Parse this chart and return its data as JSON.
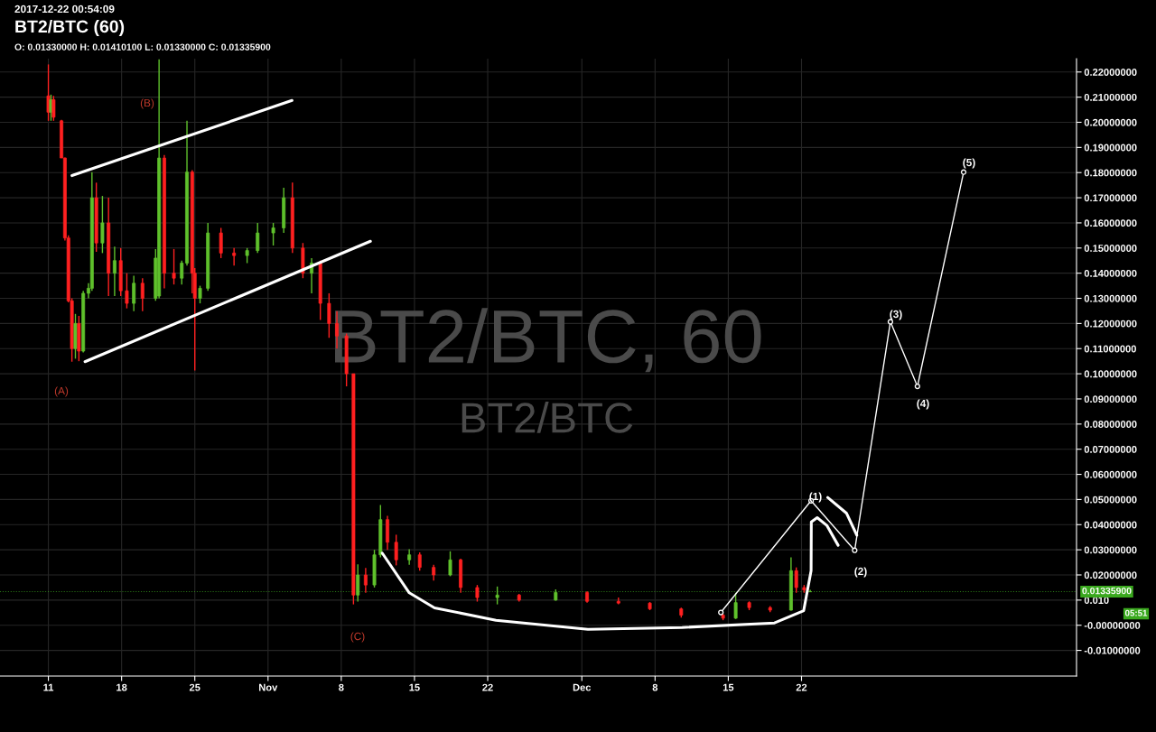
{
  "chart_data": {
    "type": "candlestick",
    "title": "BT2/BTC (60)",
    "subtitle": "O: 0.01330000 H: 0.01410100 L: 0.01330000 C: 0.01335900",
    "x": [
      "2017-10-11T00:00",
      "2017-10-11T06:00",
      "2017-10-11T12:00",
      "2017-10-12T06:00",
      "2017-10-12T14:00",
      "2017-10-12T22:00",
      "2017-10-13T06:00",
      "2017-10-13T14:00",
      "2017-10-13T22:00",
      "2017-10-14T08:00",
      "2017-10-14T20:00",
      "2017-10-15T04:00",
      "2017-10-15T14:00",
      "2017-10-16T04:00",
      "2017-10-16T18:00",
      "2017-10-17T08:00",
      "2017-10-17T22:00",
      "2017-10-18T12:00",
      "2017-10-19T04:00",
      "2017-10-20T00:00",
      "2017-10-21T06:00",
      "2017-10-21T14:00",
      "2017-10-22T02:00",
      "2017-10-23T00:00",
      "2017-10-23T18:00",
      "2017-10-24T06:00",
      "2017-10-24T18:00",
      "2017-10-25T00:00",
      "2017-10-25T12:00",
      "2017-10-26T06:00",
      "2017-10-27T12:00",
      "2017-10-28T18:00",
      "2017-10-30T00:00",
      "2017-10-31T00:00",
      "2017-11-01T12:00",
      "2017-11-02T12:00",
      "2017-11-03T08:00",
      "2017-11-04T08:00",
      "2017-11-05T04:00",
      "2017-11-06T00:00",
      "2017-11-06T20:00",
      "2017-11-07T14:00",
      "2017-11-08T12:00",
      "2017-11-09T04:00",
      "2017-11-09T14:00",
      "2017-11-10T08:00",
      "2017-11-11T04:00",
      "2017-11-11T18:00",
      "2017-11-12T10:00",
      "2017-11-13T06:00",
      "2017-11-14T12:00",
      "2017-11-15T12:00",
      "2017-11-16T20:00",
      "2017-11-18T10:00",
      "2017-11-19T10:00",
      "2017-11-21T00:00",
      "2017-11-22T22:00",
      "2017-11-25T00:00",
      "2017-11-28T12:00",
      "2017-12-01T12:00",
      "2017-12-04T12:00",
      "2017-12-07T12:00",
      "2017-12-10T12:00",
      "2017-12-14T12:00",
      "2017-12-15T17:00",
      "2017-12-17T00:00",
      "2017-12-19T00:00",
      "2017-12-21T00:00",
      "2017-12-21T12:00",
      "2017-12-22T06:00",
      "2017-12-22T20:00"
    ],
    "ohlc": [
      [
        0.2105,
        0.223,
        0.2006,
        0.204
      ],
      [
        0.204,
        0.211,
        0.2006,
        0.209
      ],
      [
        0.209,
        0.2105,
        0.2006,
        0.202
      ],
      [
        0.2006,
        0.201,
        0.1858,
        0.1858
      ],
      [
        0.1858,
        0.186,
        0.153,
        0.154
      ],
      [
        0.154,
        0.155,
        0.1284,
        0.129
      ],
      [
        0.129,
        0.13,
        0.1048,
        0.11
      ],
      [
        0.11,
        0.1238,
        0.106,
        0.12
      ],
      [
        0.12,
        0.123,
        0.105,
        0.109
      ],
      [
        0.109,
        0.133,
        0.1085,
        0.132
      ],
      [
        0.132,
        0.136,
        0.13,
        0.134
      ],
      [
        0.134,
        0.1802,
        0.133,
        0.17
      ],
      [
        0.17,
        0.176,
        0.1485,
        0.152
      ],
      [
        0.152,
        0.1707,
        0.148,
        0.16
      ],
      [
        0.16,
        0.17,
        0.1309,
        0.14
      ],
      [
        0.14,
        0.1506,
        0.1309,
        0.145
      ],
      [
        0.145,
        0.15,
        0.1309,
        0.133
      ],
      [
        0.133,
        0.14,
        0.126,
        0.128
      ],
      [
        0.128,
        0.139,
        0.1249,
        0.136
      ],
      [
        0.136,
        0.138,
        0.1249,
        0.13
      ],
      [
        0.13,
        0.1496,
        0.129,
        0.146
      ],
      [
        0.1309,
        0.225,
        0.13,
        0.1858
      ],
      [
        0.1858,
        0.187,
        0.134,
        0.14
      ],
      [
        0.14,
        0.1496,
        0.1355,
        0.138
      ],
      [
        0.138,
        0.145,
        0.1355,
        0.144
      ],
      [
        0.144,
        0.2006,
        0.143,
        0.1802
      ],
      [
        0.1802,
        0.181,
        0.132,
        0.14
      ],
      [
        0.14,
        0.142,
        0.1013,
        0.13
      ],
      [
        0.13,
        0.135,
        0.128,
        0.134
      ],
      [
        0.134,
        0.16,
        0.133,
        0.156
      ],
      [
        0.156,
        0.158,
        0.146,
        0.148
      ],
      [
        0.148,
        0.15,
        0.143,
        0.147
      ],
      [
        0.147,
        0.15,
        0.144,
        0.149
      ],
      [
        0.149,
        0.16,
        0.148,
        0.156
      ],
      [
        0.156,
        0.16,
        0.151,
        0.158
      ],
      [
        0.158,
        0.174,
        0.156,
        0.17
      ],
      [
        0.17,
        0.176,
        0.148,
        0.15
      ],
      [
        0.15,
        0.152,
        0.138,
        0.14
      ],
      [
        0.14,
        0.146,
        0.132,
        0.144
      ],
      [
        0.144,
        0.145,
        0.1214,
        0.128
      ],
      [
        0.128,
        0.132,
        0.1143,
        0.12
      ],
      [
        0.12,
        0.1249,
        0.11,
        0.115
      ],
      [
        0.115,
        0.116,
        0.095,
        0.1
      ],
      [
        0.1,
        0.1,
        0.0083,
        0.012
      ],
      [
        0.012,
        0.0242,
        0.0094,
        0.02
      ],
      [
        0.02,
        0.0228,
        0.0129,
        0.016
      ],
      [
        0.016,
        0.03,
        0.015,
        0.028
      ],
      [
        0.028,
        0.0478,
        0.027,
        0.042
      ],
      [
        0.042,
        0.0435,
        0.03,
        0.033
      ],
      [
        0.033,
        0.036,
        0.0238,
        0.026
      ],
      [
        0.026,
        0.0302,
        0.024,
        0.028
      ],
      [
        0.028,
        0.029,
        0.0217,
        0.023
      ],
      [
        0.023,
        0.024,
        0.0178,
        0.02
      ],
      [
        0.02,
        0.0294,
        0.0195,
        0.026
      ],
      [
        0.026,
        0.0265,
        0.0129,
        0.015
      ],
      [
        0.015,
        0.016,
        0.0094,
        0.011
      ],
      [
        0.011,
        0.0154,
        0.0083,
        0.012
      ],
      [
        0.012,
        0.0125,
        0.0094,
        0.01
      ],
      [
        0.01,
        0.0143,
        0.0098,
        0.013
      ],
      [
        0.013,
        0.0135,
        0.009,
        0.0095
      ],
      [
        0.0095,
        0.011,
        0.0083,
        0.0088
      ],
      [
        0.0088,
        0.0092,
        0.006,
        0.0065
      ],
      [
        0.0065,
        0.007,
        0.003,
        0.004
      ],
      [
        0.004,
        0.0045,
        0.002,
        0.0028
      ],
      [
        0.0028,
        0.0129,
        0.0025,
        0.009
      ],
      [
        0.009,
        0.0095,
        0.006,
        0.007
      ],
      [
        0.007,
        0.0076,
        0.0052,
        0.006
      ],
      [
        0.006,
        0.027,
        0.0058,
        0.0217
      ],
      [
        0.0217,
        0.023,
        0.0129,
        0.015
      ],
      [
        0.015,
        0.016,
        0.0129,
        0.014
      ],
      [
        0.0133,
        0.014101,
        0.0133,
        0.013359
      ]
    ],
    "series": [
      {
        "type": "line",
        "color": "#ffffff",
        "x": [
          "2017-10-13T06:00",
          "2017-11-03T07:00"
        ],
        "values": [
          0.1788,
          0.2087
        ]
      },
      {
        "type": "line",
        "color": "#ffffff",
        "x": [
          "2017-10-14T12:00",
          "2017-11-10T19:00"
        ],
        "values": [
          0.1048,
          0.1527
        ]
      },
      {
        "type": "line",
        "color": "#ffffff",
        "marker": "circle",
        "x": [
          "2017-12-14T07:00",
          "2017-12-22T22:00",
          "2017-12-27T02:00",
          "2017-12-30T12:00",
          "2018-01-02T02:00",
          "2018-01-06T12:00"
        ],
        "values": [
          0.0051,
          0.0495,
          0.0298,
          0.1207,
          0.095,
          0.1802
        ]
      },
      {
        "type": "line",
        "color": "#ffffff",
        "x": [
          "2017-11-11T22:00",
          "2017-11-14T12:00",
          "2017-11-16T22:00",
          "2017-11-22T19:00",
          "2017-12-01T14:00",
          "2017-12-10T14:00",
          "2017-12-19T10:00",
          "2017-12-22T05:00",
          "2017-12-22T22:00",
          "2017-12-22T22:30",
          "2017-12-23T12:00",
          "2017-12-24T10:00",
          "2017-12-25T12:00"
        ],
        "values": [
          0.0287,
          0.0129,
          0.0069,
          0.002,
          -0.0016,
          -0.0009,
          0.0009,
          0.0058,
          0.0217,
          0.0411,
          0.0428,
          0.0397,
          0.0318
        ]
      },
      {
        "type": "line",
        "color": "#ffffff",
        "x": [
          "2017-12-24T12:00",
          "2017-12-26T07:00",
          "2017-12-27T07:00"
        ],
        "values": [
          0.0508,
          0.0446,
          0.0358
        ]
      }
    ],
    "annotations": [
      "(A)",
      "(B)",
      "(C)",
      "(1)",
      "(2)",
      "(3)",
      "(4)",
      "(5)",
      "2017-12-22 00:54:09",
      "BT2/BTC, 60",
      "BT2/BTC",
      "05:51"
    ],
    "ref_lines": [
      {
        "axis": "y",
        "value": 0.013359,
        "label": "0.01335900",
        "color": "#3aa81e",
        "line_style": "dotted"
      }
    ],
    "xlim": [
      "2017-10-06T09:00",
      "2018-01-17T07:00"
    ],
    "xticks": [
      {
        "value": "2017-10-11",
        "label": "11"
      },
      {
        "value": "2017-10-18",
        "label": "18"
      },
      {
        "value": "2017-10-25",
        "label": "25"
      },
      {
        "value": "2017-11-01",
        "label": "Nov"
      },
      {
        "value": "2017-11-08",
        "label": "8"
      },
      {
        "value": "2017-11-15",
        "label": "15"
      },
      {
        "value": "2017-11-22",
        "label": "22"
      },
      {
        "value": "2017-12-01",
        "label": "Dec"
      },
      {
        "value": "2017-12-08",
        "label": "8"
      },
      {
        "value": "2017-12-15",
        "label": "15"
      },
      {
        "value": "2017-12-22",
        "label": "22"
      }
    ],
    "ylim": [
      -0.0202,
      0.2253
    ],
    "yticks": [
      {
        "value": -0.01,
        "label": "-0.01000000"
      },
      {
        "value": 0,
        "label": "-0.00000000"
      },
      {
        "value": 0.01,
        "label": "0.010"
      },
      {
        "value": 0.02,
        "label": "0.02000000"
      },
      {
        "value": 0.03,
        "label": "0.03000000"
      },
      {
        "value": 0.04,
        "label": "0.04000000"
      },
      {
        "value": 0.05,
        "label": "0.05000000"
      },
      {
        "value": 0.06,
        "label": "0.06000000"
      },
      {
        "value": 0.07,
        "label": "0.07000000"
      },
      {
        "value": 0.08,
        "label": "0.08000000"
      },
      {
        "value": 0.09,
        "label": "0.09000000"
      },
      {
        "value": 0.1,
        "label": "0.10000000"
      },
      {
        "value": 0.11,
        "label": "0.11000000"
      },
      {
        "value": 0.12,
        "label": "0.12000000"
      },
      {
        "value": 0.13,
        "label": "0.13000000"
      },
      {
        "value": 0.14,
        "label": "0.14000000"
      },
      {
        "value": 0.15,
        "label": "0.15000000"
      },
      {
        "value": 0.16,
        "label": "0.16000000"
      },
      {
        "value": 0.17,
        "label": "0.17000000"
      },
      {
        "value": 0.18,
        "label": "0.18000000"
      },
      {
        "value": 0.19,
        "label": "0.19000000"
      },
      {
        "value": 0.2,
        "label": "0.20000000"
      },
      {
        "value": 0.21,
        "label": "0.21000000"
      },
      {
        "value": 0.22,
        "label": "0.22000000"
      }
    ],
    "grid": true
  }
}
